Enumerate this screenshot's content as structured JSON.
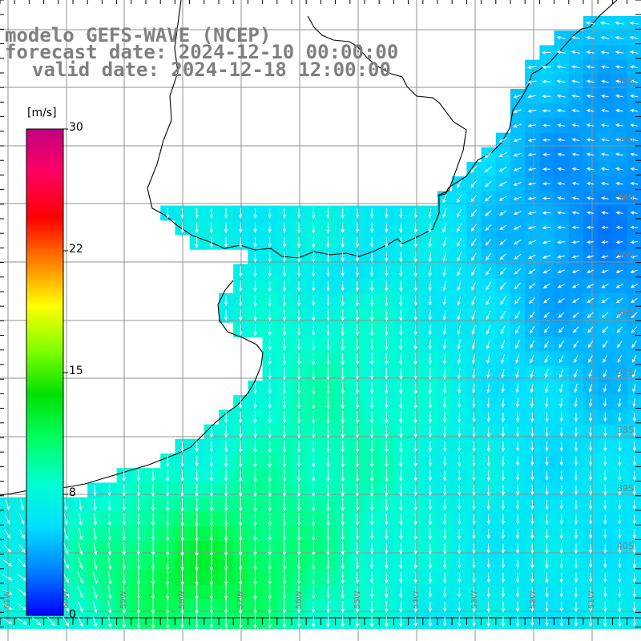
{
  "titles": {
    "line1": "modelo GEFS-WAVE (NCEP)",
    "line2": "forecast date: 2024-12-10 00:00:00",
    "line3": "valid date: 2024-12-18 12:00:00"
  },
  "colorbar": {
    "units": "[m/s]",
    "ticks": [
      "30",
      "22",
      "15",
      "8",
      "0"
    ],
    "stops": [
      "#0000ff",
      "#0080ff",
      "#00e0ff",
      "#00ffd0",
      "#00ff60",
      "#00e000",
      "#80ff00",
      "#ffff00",
      "#ff8000",
      "#ff0000",
      "#ff0060",
      "#c00080"
    ]
  },
  "grid": {
    "lat_labels": [
      "32S",
      "33S",
      "34S",
      "35S",
      "36S",
      "37S",
      "38S",
      "39S",
      "40S"
    ],
    "lon_labels": [
      "61W",
      "60W",
      "59W",
      "58W",
      "57W",
      "56W",
      "55W",
      "54W",
      "53W",
      "52W",
      "51W"
    ]
  },
  "colors": {
    "land": "#ffffff",
    "grid": "#909090",
    "coast": "#000000",
    "arrow": "#ffffff",
    "label": "#7f7f7f"
  }
}
